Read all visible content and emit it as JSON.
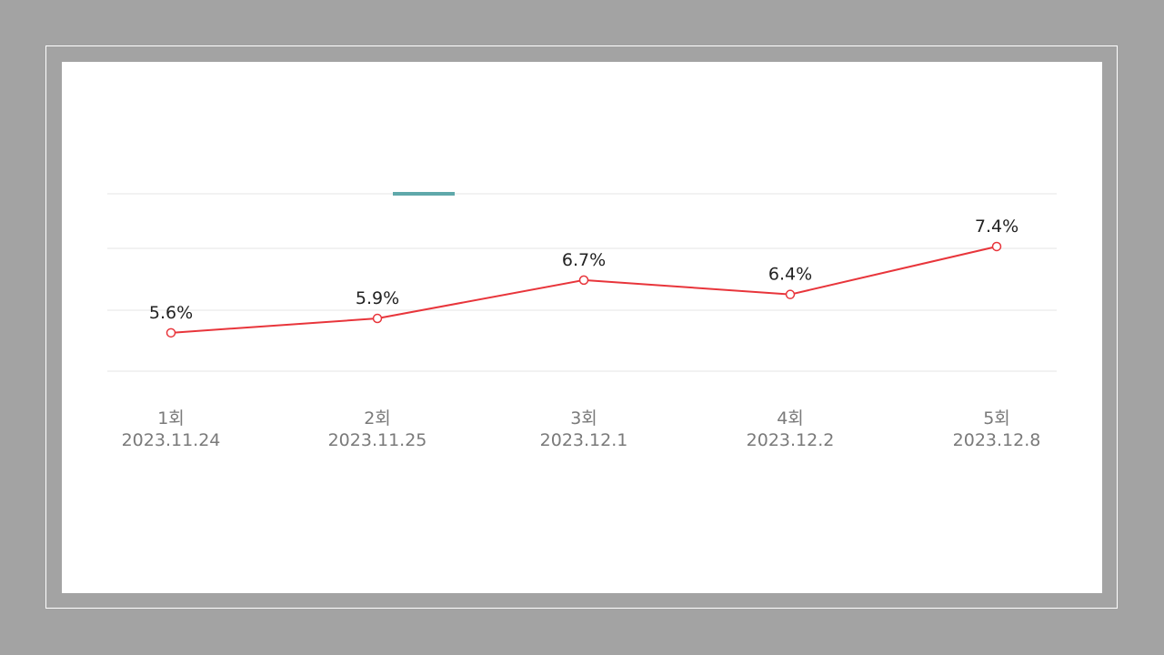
{
  "chart_data": {
    "type": "line",
    "categories": [
      "1회",
      "2회",
      "3회",
      "4회",
      "5회"
    ],
    "dates": [
      "2023.11.24",
      "2023.11.25",
      "2023.12.1",
      "2023.12.2",
      "2023.12.8"
    ],
    "series": [
      {
        "values": [
          5.6,
          5.9,
          6.7,
          6.4,
          7.4
        ],
        "data_labels": [
          "5.6%",
          "5.9%",
          "6.7%",
          "6.4%",
          "7.4%"
        ]
      }
    ],
    "unit": "%",
    "title": "",
    "xlabel": "",
    "ylabel": "",
    "grid": true,
    "colors": {
      "line": "#e8353b",
      "accent": "#5fa8aa",
      "background": "#a3a3a3"
    }
  }
}
